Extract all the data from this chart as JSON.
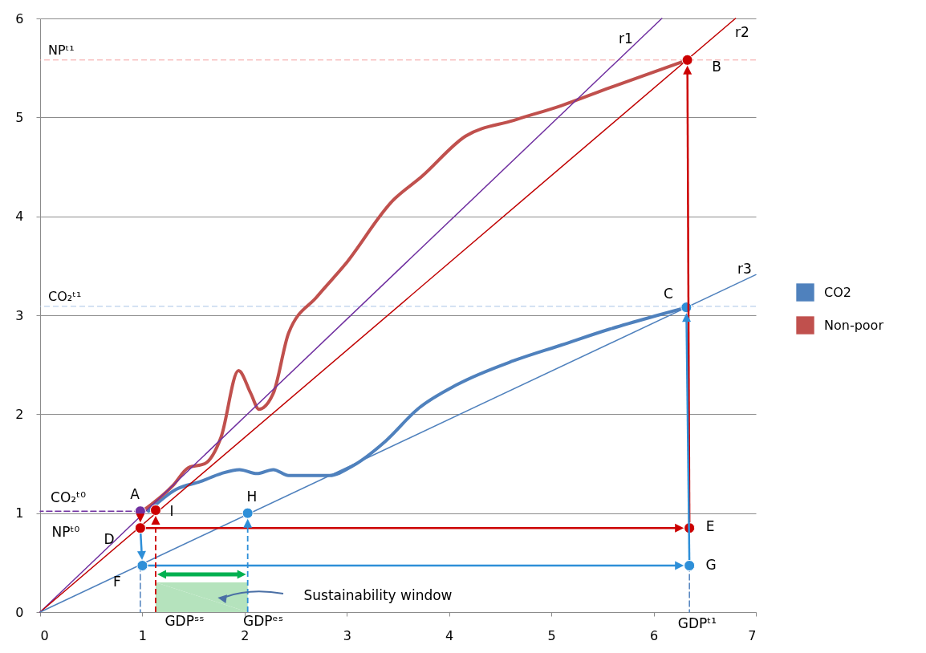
{
  "chart_data": {
    "type": "line",
    "xlim": [
      0,
      7
    ],
    "ylim": [
      0,
      6
    ],
    "xticks": [
      0,
      1,
      2,
      3,
      4,
      5,
      6,
      7
    ],
    "yticks": [
      0,
      1,
      2,
      3,
      4,
      5,
      6
    ],
    "grid": "y",
    "legend": "right",
    "series": [
      {
        "name": "CO2",
        "color": "#4f81bd",
        "x": [
          1.06,
          1.33,
          1.57,
          1.77,
          1.95,
          2.12,
          2.28,
          2.43,
          2.83,
          3.06,
          3.38,
          3.69,
          4.08,
          4.63,
          5.1,
          5.57,
          6.04,
          6.32
        ],
        "values": [
          1.02,
          1.24,
          1.32,
          1.4,
          1.44,
          1.4,
          1.44,
          1.38,
          1.38,
          1.48,
          1.73,
          2.05,
          2.3,
          2.54,
          2.7,
          2.86,
          3.0,
          3.08
        ]
      },
      {
        "name": "Non-poor",
        "color": "#c0504d",
        "x": [
          1.0,
          1.3,
          1.45,
          1.61,
          1.77,
          1.94,
          2.06,
          2.14,
          2.28,
          2.43,
          2.71,
          2.98,
          3.45,
          3.73,
          4.16,
          4.63,
          5.1,
          5.57,
          6.33
        ],
        "values": [
          1.02,
          1.28,
          1.46,
          1.5,
          1.77,
          2.44,
          2.21,
          2.05,
          2.21,
          2.82,
          3.19,
          3.51,
          4.16,
          4.4,
          4.81,
          4.97,
          5.12,
          5.3,
          5.58
        ]
      },
      {
        "type": "area",
        "color": "#b5e3bd",
        "x": [
          1.13,
          2.03
        ],
        "values": [
          0.3,
          0.3
        ]
      },
      {
        "color": "#7030a0",
        "x": [
          0,
          6.08
        ],
        "values": [
          0,
          6
        ]
      },
      {
        "color": "#c00000",
        "x": [
          0,
          6.8
        ],
        "values": [
          0,
          6
        ]
      },
      {
        "color": "#4f81bd",
        "x": [
          0,
          7
        ],
        "values": [
          0,
          3.41
        ]
      },
      {
        "color": "#7030a0",
        "line_style": "dashed",
        "x": [
          0.98,
          0
        ],
        "values": [
          1.02,
          1.02
        ]
      },
      {
        "color": "#4f81bd",
        "line_style": "dashed",
        "x": [
          0.98,
          0.98
        ],
        "values": [
          0.47,
          0
        ]
      },
      {
        "color": "#4f81bd",
        "line_style": "dashed",
        "x": [
          6.35,
          6.35
        ],
        "values": [
          0.47,
          0
        ]
      },
      {
        "type": "scatter",
        "marker": "circle",
        "color": "#cc0000",
        "x": [
          0.98,
          1.13,
          6.35,
          6.33
        ],
        "values": [
          0.85,
          1.03,
          0.85,
          5.58
        ]
      },
      {
        "type": "scatter",
        "marker": "circle",
        "color": "#2e8fd8",
        "x": [
          1.0,
          2.03,
          6.35,
          6.32
        ],
        "values": [
          0.47,
          1.0,
          0.47,
          3.08
        ]
      },
      {
        "type": "scatter",
        "marker": "circle",
        "color": "#7030a0",
        "x": [
          0.98
        ],
        "values": [
          1.02
        ]
      }
    ],
    "ref_lines": [
      {
        "axis": "y",
        "value": 5.58,
        "label": "NPᵗ¹",
        "color": "#f4a0a0",
        "line_style": "dashed"
      },
      {
        "axis": "y",
        "value": 3.09,
        "label": "CO₂ᵗ¹",
        "color": "#a8c4e6",
        "line_style": "dashed"
      }
    ],
    "annotations": [
      "A",
      "B",
      "C",
      "D",
      "E",
      "F",
      "G",
      "H",
      {
        "text": "I",
        "x": 1.13,
        "y": 1.03
      },
      "r1",
      "r2",
      "r3",
      "CO₂ᵗ⁰",
      "NPᵗ⁰",
      "Sustainability window",
      "GDPˢˢ",
      "GDPᵉˢ",
      "GDPᵗ¹"
    ]
  }
}
